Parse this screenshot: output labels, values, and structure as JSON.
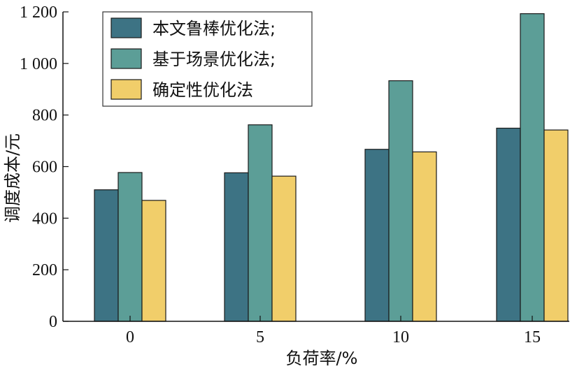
{
  "chart_data": {
    "type": "bar",
    "title": "",
    "xlabel": "负荷率/%",
    "ylabel": "调度成本/元",
    "categories": [
      "0",
      "5",
      "10",
      "15"
    ],
    "series": [
      {
        "name": "本文鲁棒优化法;",
        "values": [
          510,
          576,
          667,
          749
        ],
        "color": "#3d7384"
      },
      {
        "name": "基于场景优化法;",
        "values": [
          577,
          762,
          933,
          1193
        ],
        "color": "#5c9e97"
      },
      {
        "name": "确定性优化法",
        "values": [
          469,
          563,
          657,
          742
        ],
        "color": "#f1ce6a"
      }
    ],
    "ylim": [
      0,
      1200
    ],
    "yticks": [
      0,
      200,
      400,
      600,
      800,
      1000,
      1200
    ],
    "ytick_labels": [
      "0",
      "200",
      "400",
      "600",
      "800",
      "1 000",
      "1 200"
    ],
    "grid": false,
    "legend_position": "top-left"
  }
}
